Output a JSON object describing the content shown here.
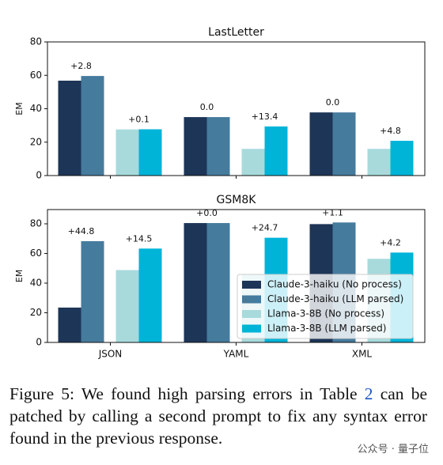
{
  "chart_data": [
    {
      "type": "bar",
      "title": "LastLetter",
      "y_label": "EM",
      "ylim": [
        0,
        80
      ],
      "yticks": [
        0,
        20,
        40,
        60,
        80
      ],
      "series": [
        {
          "color": "#1d3557",
          "values": [
            56.8,
            35,
            37.8
          ]
        },
        {
          "color": "#457b9d",
          "values": [
            59.6,
            35,
            37.8
          ]
        },
        {
          "color": "#a8dadc",
          "values": [
            27.6,
            16,
            16
          ]
        },
        {
          "color": "#00b4d8",
          "values": [
            27.7,
            29.4,
            20.8
          ]
        }
      ],
      "annotations": [
        [
          "+2.8",
          "+0.1"
        ],
        [
          "0.0",
          "+13.4"
        ],
        [
          "0.0",
          "+4.8"
        ]
      ]
    },
    {
      "type": "bar",
      "title": "GSM8K",
      "y_label": "EM",
      "categories": [
        "JSON",
        "YAML",
        "XML"
      ],
      "ylim": [
        0,
        89.6
      ],
      "yticks": [
        0,
        20,
        40,
        60,
        80
      ],
      "legend": "lower right",
      "series": [
        {
          "name": "Claude-3-haiku (No process)",
          "color": "#1d3557",
          "values": [
            23.5,
            80.5,
            79.8
          ]
        },
        {
          "name": "Claude-3-haiku (LLM parsed)",
          "color": "#457b9d",
          "values": [
            68.3,
            80.5,
            80.9
          ]
        },
        {
          "name": "Llama-3-8B (No process)",
          "color": "#a8dadc",
          "values": [
            48.8,
            46,
            56.4
          ]
        },
        {
          "name": "Llama-3-8B (LLM parsed)",
          "color": "#00b4d8",
          "values": [
            63.3,
            70.6,
            60.6
          ]
        }
      ],
      "annotations": [
        [
          "+44.8",
          "+14.5"
        ],
        [
          "+0.0",
          "+24.7"
        ],
        [
          "+1.1",
          "+4.2"
        ]
      ]
    }
  ],
  "caption": {
    "before": "Figure 5: We found high parsing errors in Table ",
    "ref": "2",
    "after": " can be patched by calling a second prompt to fix any syntax error found in the previous response."
  },
  "watermark": "公众号 · 量子位"
}
